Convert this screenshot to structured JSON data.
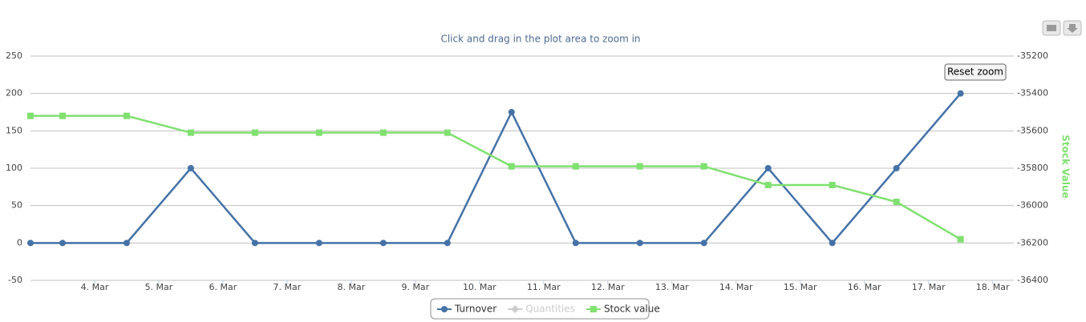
{
  "chart_data": {
    "type": "line",
    "subtitle": "Click and drag in the plot area to zoom in",
    "y2_label": "Stock Value",
    "reset_button": "Reset zoom",
    "x": [
      3.0,
      3.5,
      4.5,
      5.5,
      6.5,
      7.5,
      8.5,
      9.5,
      10.5,
      11.5,
      12.5,
      13.5,
      14.5,
      15.5,
      16.5,
      17.5
    ],
    "xlim": [
      3.0,
      18.28
    ],
    "xticks": [
      {
        "value": 4,
        "label": "4. Mar"
      },
      {
        "value": 5,
        "label": "5. Mar"
      },
      {
        "value": 6,
        "label": "6. Mar"
      },
      {
        "value": 7,
        "label": "7. Mar"
      },
      {
        "value": 8,
        "label": "8. Mar"
      },
      {
        "value": 9,
        "label": "9. Mar"
      },
      {
        "value": 10,
        "label": "10. Mar"
      },
      {
        "value": 11,
        "label": "11. Mar"
      },
      {
        "value": 12,
        "label": "12. Mar"
      },
      {
        "value": 13,
        "label": "13. Mar"
      },
      {
        "value": 14,
        "label": "14. Mar"
      },
      {
        "value": 15,
        "label": "15. Mar"
      },
      {
        "value": 16,
        "label": "16. Mar"
      },
      {
        "value": 17,
        "label": "17. Mar"
      },
      {
        "value": 18,
        "label": "18. Mar"
      }
    ],
    "ylim": [
      -50,
      250
    ],
    "yticks": [
      -50,
      0,
      50,
      100,
      150,
      200,
      250
    ],
    "y2lim": [
      -36400,
      -35200
    ],
    "y2ticks": [
      -36400,
      -36200,
      -36000,
      -35800,
      -35600,
      -35400,
      -35200
    ],
    "grid": true,
    "legend": "bottom",
    "series": [
      {
        "name": "Turnover",
        "color": "#4572a7",
        "marker": "circle",
        "values": [
          0,
          0,
          0,
          100,
          0,
          0,
          0,
          0,
          175,
          0,
          0,
          0,
          100,
          0,
          100,
          200
        ]
      },
      {
        "name": "Quantities",
        "color": "#cccccc",
        "marker": "diamond",
        "visible": false
      },
      {
        "name": "Stock value",
        "color": "#80e070",
        "marker": "square",
        "axis": "y2",
        "values": [
          -35520,
          -35520,
          -35520,
          -35610,
          -35610,
          -35610,
          -35610,
          -35610,
          -35790,
          -35790,
          -35790,
          -35790,
          -35890,
          -35890,
          -35980,
          -36180
        ]
      }
    ]
  }
}
